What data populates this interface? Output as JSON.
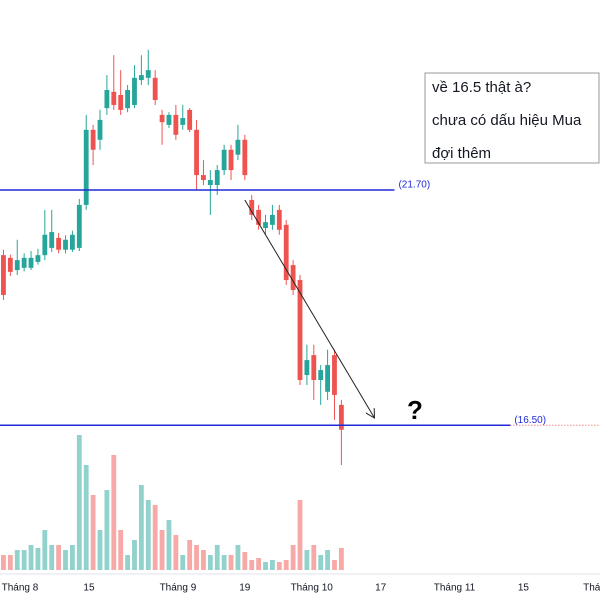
{
  "chart_data": {
    "type": "candlestick",
    "open": [
      20.26,
      20.2,
      19.93,
      19.98,
      19.98,
      20.11,
      20.26,
      20.42,
      20.64,
      20.38,
      20.38,
      20.42,
      21.37,
      23.03,
      22.81,
      23.51,
      23.87,
      23.8,
      23.51,
      23.58,
      24.13,
      24.18,
      24.18,
      23.36,
      23.14,
      23.36,
      23.14,
      23.47,
      23.03,
      22.03,
      21.81,
      21.81,
      22.14,
      22.59,
      22.48,
      22.81,
      21.48,
      21.26,
      20.86,
      20.93,
      21.26,
      20.93,
      20.04,
      19.71,
      17.61,
      18.05,
      17.5,
      17.24,
      18.05,
      16.95
    ],
    "high": [
      20.38,
      20.27,
      20.6,
      20.3,
      20.35,
      20.4,
      21.26,
      21.26,
      20.75,
      20.7,
      20.8,
      21.5,
      23.36,
      23.14,
      23.47,
      24.24,
      24.68,
      24.35,
      24.02,
      24.46,
      24.68,
      24.8,
      24.35,
      23.47,
      23.42,
      23.58,
      23.58,
      23.51,
      23.25,
      22.36,
      22.14,
      22.25,
      22.7,
      22.7,
      23.14,
      22.92,
      21.59,
      21.37,
      21.15,
      21.37,
      21.37,
      21.04,
      20.15,
      19.82,
      18.28,
      18.28,
      17.83,
      18.17,
      18.17,
      17.06
    ],
    "low": [
      19.27,
      19.8,
      19.82,
      19.9,
      19.93,
      20.05,
      20.15,
      20.33,
      20.3,
      20.3,
      20.33,
      20.35,
      21.26,
      22.25,
      22.59,
      23.36,
      23.47,
      23.36,
      23.42,
      23.51,
      24.02,
      24.02,
      23.58,
      22.7,
      23.07,
      22.81,
      23.03,
      22.98,
      21.7,
      21.81,
      21.15,
      21.59,
      22.03,
      21.92,
      22.36,
      21.92,
      21.04,
      20.82,
      20.71,
      20.82,
      20.71,
      19.6,
      19.38,
      17.39,
      17.39,
      17.06,
      16.95,
      17.06,
      16.62,
      15.62
    ],
    "close": [
      19.38,
      19.89,
      20.15,
      20.2,
      20.2,
      20.26,
      20.71,
      20.77,
      20.38,
      20.6,
      20.71,
      21.37,
      23.03,
      22.59,
      23.25,
      23.91,
      23.58,
      23.47,
      23.91,
      24.18,
      24.24,
      24.35,
      23.69,
      23.2,
      23.36,
      22.92,
      23.29,
      23.03,
      22.03,
      21.92,
      21.92,
      22.14,
      22.59,
      22.14,
      22.81,
      22.03,
      21.15,
      20.93,
      20.99,
      21.15,
      20.82,
      19.71,
      19.49,
      17.5,
      17.94,
      17.5,
      17.72,
      17.83,
      17.17,
      16.4
    ],
    "volume": [
      1.5,
      1.5,
      2,
      2,
      2.5,
      2.2,
      4,
      2.5,
      2.5,
      2,
      2.5,
      13.5,
      10.5,
      7.5,
      4,
      8,
      11.5,
      4,
      1.5,
      3,
      8.5,
      7,
      6.5,
      4,
      5,
      3.5,
      1.5,
      3,
      2.5,
      2,
      1.5,
      2.5,
      1.5,
      1.5,
      2.5,
      1.8,
      1,
      1.2,
      0.8,
      1,
      0.8,
      1,
      2.5,
      7,
      2,
      2.5,
      1.5,
      2,
      1,
      2.2
    ],
    "up_color": "#26a69a",
    "down_color": "#ef5350",
    "ylim": [
      13.3,
      25.9
    ],
    "volume_lim": [
      0,
      57
    ],
    "xlim": [
      -0.5,
      86.5
    ],
    "xticks": [
      {
        "value": 2.4,
        "label": "Tháng 8"
      },
      {
        "value": 12.4,
        "label": "15"
      },
      {
        "value": 25.3,
        "label": "Tháng 9"
      },
      {
        "value": 35,
        "label": "19"
      },
      {
        "value": 44.7,
        "label": "Tháng 10"
      },
      {
        "value": 54.7,
        "label": "17"
      },
      {
        "value": 65.4,
        "label": "Tháng 11"
      },
      {
        "value": 75.4,
        "label": "15"
      },
      {
        "value": 85.3,
        "label": "Thá"
      }
    ],
    "hlines": [
      {
        "value": 21.7,
        "label": "(21.70)",
        "end": 56.7,
        "color": "#1e2bd6"
      },
      {
        "value": 16.5,
        "label": "(16.50)",
        "end": 73.5,
        "color": "#1e2bd6"
      }
    ],
    "trendline": {
      "x": [
        35,
        53.8
      ],
      "y": [
        21.48,
        16.66
      ]
    },
    "annotation": [
      "về 16.5 thật à?",
      "chưa có dấu hiệu Mua",
      "đợi thêm"
    ],
    "marker": "?"
  }
}
